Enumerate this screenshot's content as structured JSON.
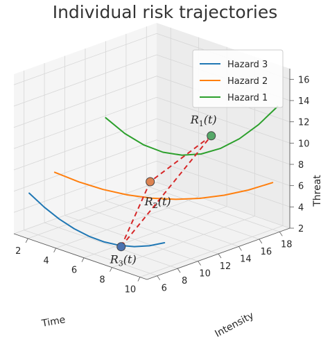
{
  "chart_data": {
    "type": "line",
    "subtype": "3d",
    "title": "Individual risk trajectories",
    "xlabel": "Time",
    "ylabel": "Intensity",
    "zlabel": "Threat",
    "xticks": [
      "2",
      "4",
      "6",
      "8",
      "10"
    ],
    "yticks": [
      "6",
      "8",
      "10",
      "12",
      "14",
      "16",
      "18"
    ],
    "zticks": [
      "2",
      "4",
      "6",
      "8",
      "10",
      "12",
      "14",
      "16"
    ],
    "xlim": [
      1,
      10.5
    ],
    "ylim": [
      5,
      19
    ],
    "zlim": [
      2,
      17
    ],
    "grid": true,
    "legend_position": "top-right",
    "series": [
      {
        "name": "Hazard 3",
        "color": "#1f77b4",
        "x": [
          1,
          2,
          3,
          4,
          5,
          6,
          7,
          8,
          9,
          10
        ],
        "y": [
          6.5,
          6.6,
          6.7,
          6.8,
          6.9,
          7.0,
          7.1,
          7.2,
          7.3,
          7.4
        ],
        "z": [
          5.3,
          4.4,
          3.7,
          3.2,
          2.9,
          2.8,
          2.9,
          3.2,
          3.7,
          4.4
        ]
      },
      {
        "name": "Hazard 2",
        "color": "#ff7f0e",
        "x": [
          1,
          2,
          3,
          4,
          5,
          6,
          7,
          8,
          9,
          10
        ],
        "y": [
          9,
          10,
          11,
          12,
          13,
          14,
          15,
          16,
          17,
          18
        ],
        "z": [
          6.4,
          5.6,
          5.0,
          4.6,
          4.4,
          4.4,
          4.6,
          5.0,
          5.6,
          6.4
        ]
      },
      {
        "name": "Hazard 1",
        "color": "#2ca02c",
        "x": [
          1,
          2,
          3,
          4,
          5,
          6,
          7,
          8,
          9,
          10
        ],
        "y": [
          14,
          14.5,
          15,
          15.5,
          16,
          16.5,
          17,
          17.5,
          18,
          18.5
        ],
        "z": [
          9.8,
          8.6,
          7.8,
          7.4,
          7.4,
          7.8,
          8.6,
          9.8,
          11.4,
          13.4
        ]
      }
    ],
    "points": [
      {
        "label": "R",
        "subscript": "1",
        "suffix": "(t)",
        "x": 9.7,
        "y": 12.4,
        "z": 12.6,
        "color": "#55a868"
      },
      {
        "label": "R",
        "subscript": "2",
        "suffix": "(t)",
        "x": 7.6,
        "y": 9.3,
        "z": 8.4,
        "color": "#dd8452"
      },
      {
        "label": "R",
        "subscript": "3",
        "suffix": "(t)",
        "x": 7.2,
        "y": 7.0,
        "z": 2.9,
        "color": "#4c72b0"
      }
    ],
    "connections_color": "#d62728"
  }
}
